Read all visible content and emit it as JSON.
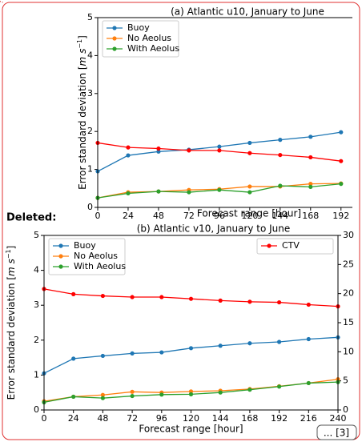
{
  "chart_data": [
    {
      "type": "line",
      "title": "(a) Atlantic u10, January to June",
      "ylabel": [
        "Error standard deviation [",
        "m s",
        "−1",
        "]"
      ],
      "xlabel": "Forecast range [hour]",
      "x": [
        0,
        24,
        48,
        72,
        96,
        120,
        144,
        168,
        192
      ],
      "xlim": [
        0,
        201
      ],
      "xticks": [
        0,
        24,
        48,
        72,
        96,
        120,
        144,
        168,
        192
      ],
      "ylim": [
        0,
        5
      ],
      "yticks": [
        0,
        1,
        2,
        3,
        4,
        5
      ],
      "legend": "upper left",
      "series": [
        {
          "name": "Buoy",
          "color": "#1f77b4",
          "values": [
            0.95,
            1.37,
            1.47,
            1.52,
            1.6,
            1.7,
            1.78,
            1.86,
            1.98
          ]
        },
        {
          "name": "No Aeolus",
          "color": "#ff7f0e",
          "values": [
            0.25,
            0.4,
            0.42,
            0.46,
            0.48,
            0.55,
            0.55,
            0.62,
            0.63
          ]
        },
        {
          "name": "With Aeolus",
          "color": "#2ca02c",
          "values": [
            0.25,
            0.37,
            0.42,
            0.4,
            0.46,
            0.4,
            0.57,
            0.54,
            0.62
          ]
        },
        {
          "color": "#ff0000",
          "values": [
            1.7,
            1.58,
            1.55,
            1.5,
            1.5,
            1.43,
            1.38,
            1.32,
            1.22
          ]
        }
      ]
    },
    {
      "type": "line",
      "title": "(b) Atlantic v10, January to June",
      "ylabel": [
        "Error standard deviation [",
        "m s",
        "−1",
        "]"
      ],
      "xlabel": "Forecast range [hour]",
      "x": [
        0,
        24,
        48,
        72,
        96,
        120,
        144,
        168,
        192,
        216,
        240
      ],
      "xlim": [
        0,
        240
      ],
      "xticks": [
        0,
        24,
        48,
        72,
        96,
        120,
        144,
        168,
        192,
        216,
        240
      ],
      "ylim": [
        0,
        5
      ],
      "yticks": [
        0,
        1,
        2,
        3,
        4,
        5
      ],
      "y2lim": [
        0,
        30
      ],
      "y2ticks": [
        0,
        5,
        10,
        15,
        20,
        25,
        30
      ],
      "legend": "upper left",
      "legend2": "upper right",
      "series": [
        {
          "name": "Buoy",
          "color": "#1f77b4",
          "values": [
            1.05,
            1.47,
            1.55,
            1.62,
            1.65,
            1.77,
            1.84,
            1.91,
            1.95,
            2.03,
            2.08
          ]
        },
        {
          "name": "No Aeolus",
          "color": "#ff7f0e",
          "values": [
            0.25,
            0.38,
            0.43,
            0.52,
            0.5,
            0.53,
            0.55,
            0.6,
            0.68,
            0.77,
            0.88
          ]
        },
        {
          "name": "With Aeolus",
          "color": "#2ca02c",
          "values": [
            0.22,
            0.38,
            0.34,
            0.4,
            0.44,
            0.45,
            0.5,
            0.58,
            0.67,
            0.77,
            0.8
          ]
        },
        {
          "name": "CTV",
          "color": "#ff0000",
          "axis": "y2",
          "values": [
            20.8,
            19.9,
            19.6,
            19.4,
            19.4,
            19.1,
            18.8,
            18.6,
            18.5,
            18.1,
            17.8
          ]
        }
      ]
    }
  ],
  "deleted_label": "Deleted:",
  "more_link": "... [3]"
}
